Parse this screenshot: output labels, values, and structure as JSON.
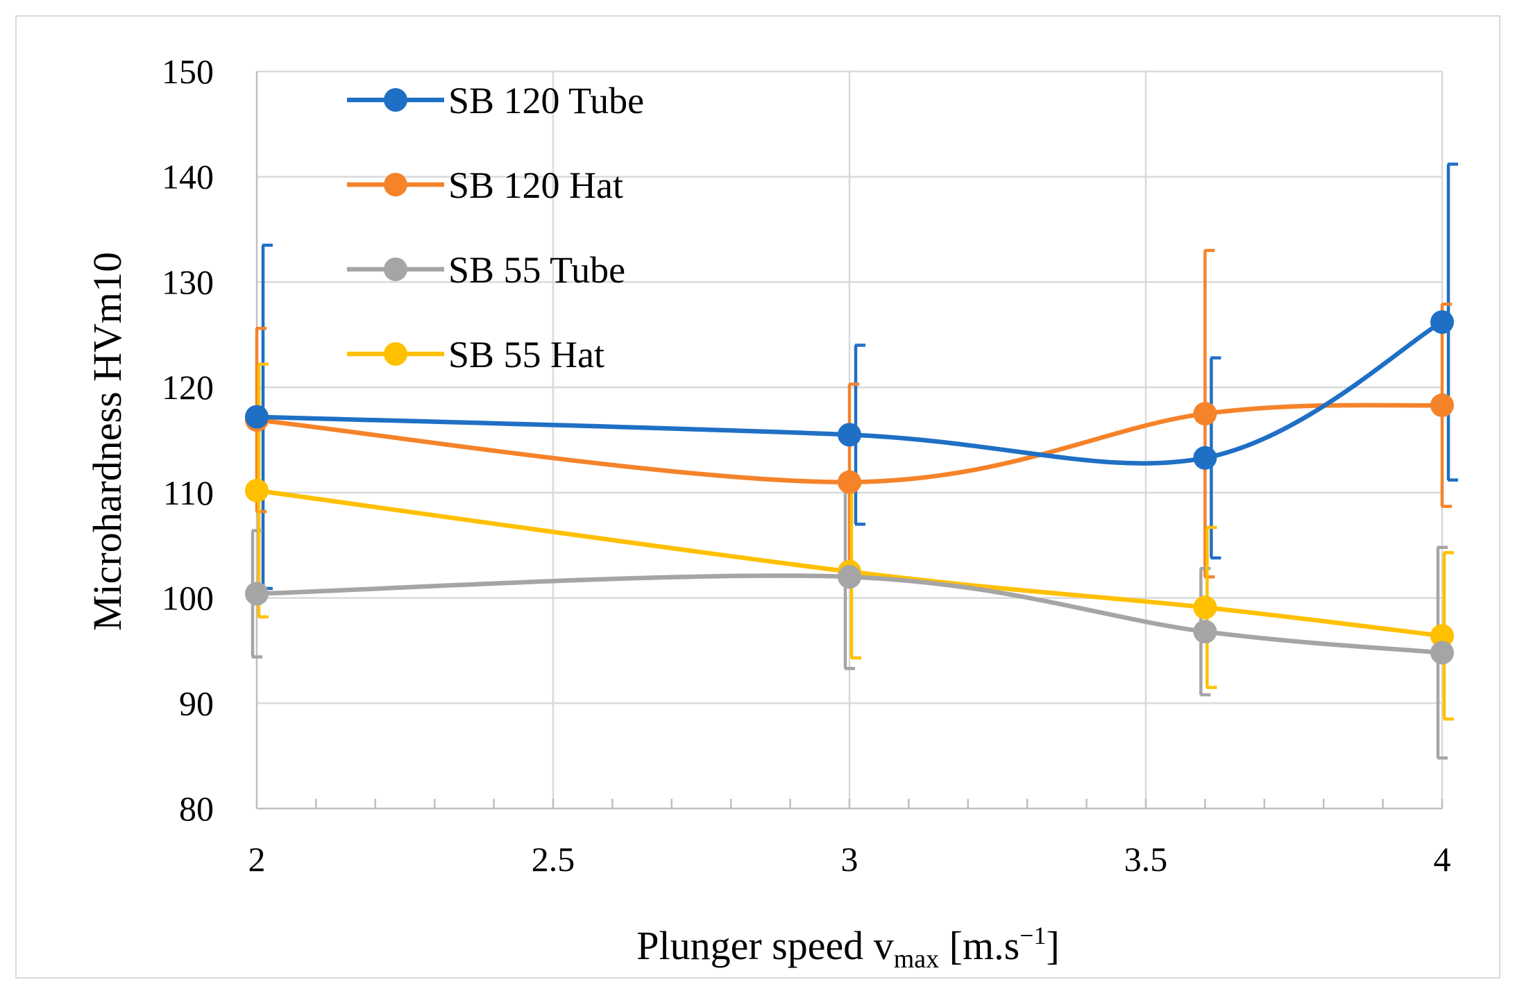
{
  "chart_data": {
    "type": "line",
    "title": "",
    "xlabel": {
      "prefix": "Plunger speed v",
      "subscript": "max",
      "unit_open": " [m.s",
      "superscript": "−1",
      "unit_close": "]"
    },
    "ylabel": "Microhardness HVm10",
    "xlim": [
      2,
      4
    ],
    "ylim": [
      80,
      150
    ],
    "x_ticks": [
      2,
      2.5,
      3,
      3.5,
      4
    ],
    "x_tick_labels": [
      "2",
      "2.5",
      "3",
      "3.5",
      "4"
    ],
    "y_ticks": [
      80,
      90,
      100,
      110,
      120,
      130,
      140,
      150
    ],
    "y_tick_labels": [
      "80",
      "90",
      "100",
      "110",
      "120",
      "130",
      "140",
      "150"
    ],
    "x_minor_step": 0.1,
    "grid": true,
    "smoothed": true,
    "legend_position": "top-left",
    "x": [
      2,
      3,
      3.6,
      4
    ],
    "series": [
      {
        "name": "SB 120 Tube",
        "color": "#1f6fc5",
        "values": [
          117.2,
          115.5,
          113.3,
          126.2
        ],
        "error": [
          16.3,
          8.5,
          9.5,
          15.0
        ]
      },
      {
        "name": "SB 120 Hat",
        "color": "#f5832a",
        "values": [
          116.9,
          111.0,
          117.5,
          118.3
        ],
        "error": [
          8.7,
          9.3,
          15.5,
          9.6
        ]
      },
      {
        "name": "SB 55 Tube",
        "color": "#a5a5a5",
        "values": [
          100.4,
          102.0,
          96.8,
          94.8
        ],
        "error": [
          6.0,
          8.7,
          6.0,
          10.0
        ]
      },
      {
        "name": "SB 55 Hat",
        "color": "#ffc000",
        "values": [
          110.2,
          102.5,
          99.1,
          96.4
        ],
        "error": [
          12.0,
          8.2,
          7.6,
          7.9
        ]
      }
    ]
  }
}
